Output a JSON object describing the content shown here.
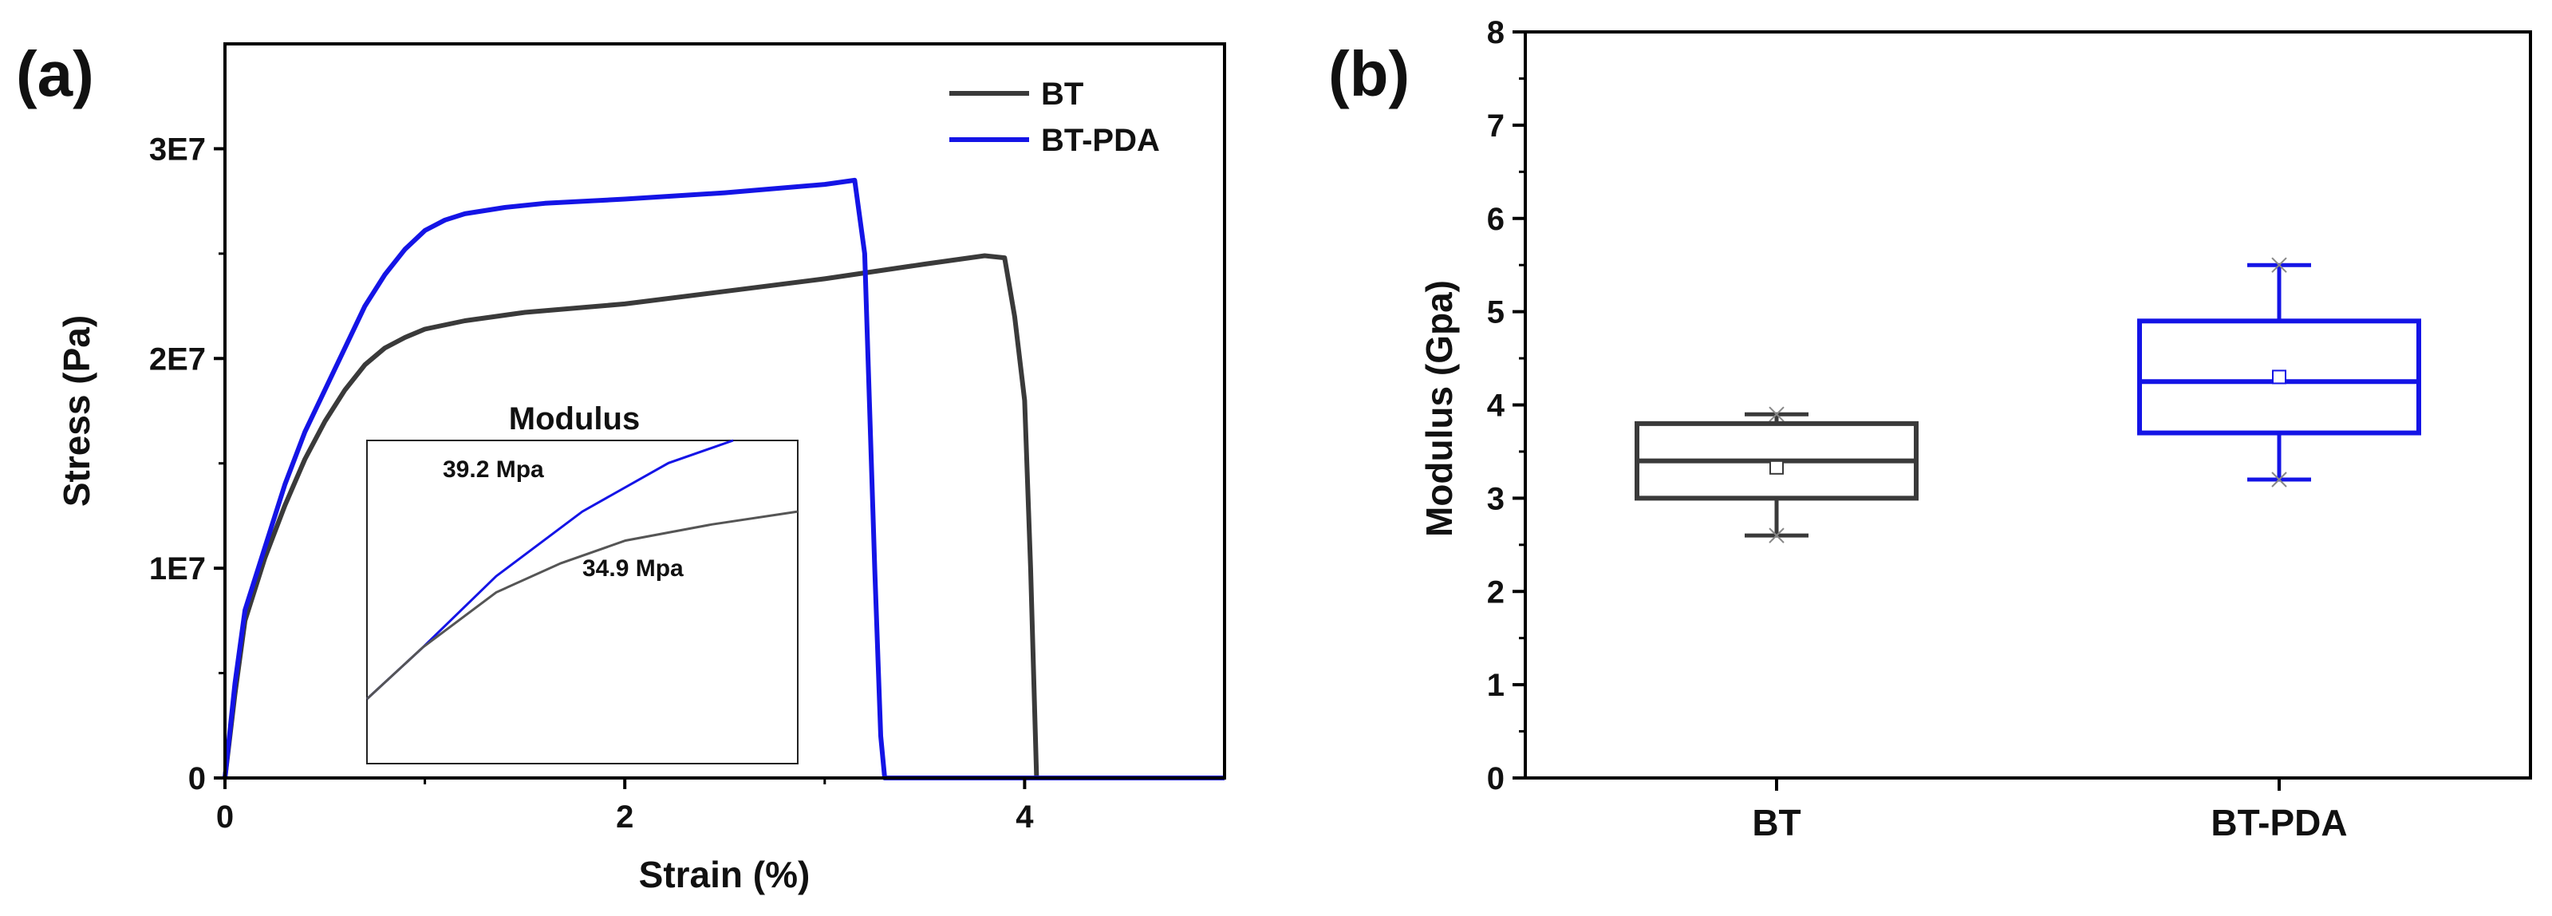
{
  "chart_data": [
    {
      "panel_label": "(a)",
      "type": "line",
      "title": "",
      "xlabel": "Strain (%)",
      "ylabel": "Stress (Pa)",
      "xlim": [
        0,
        5
      ],
      "ylim": [
        0,
        35000000
      ],
      "x_ticks": [
        0,
        2,
        4
      ],
      "x_tick_labels": [
        "0",
        "2",
        "4"
      ],
      "y_ticks": [
        0,
        10000000,
        20000000,
        30000000
      ],
      "y_tick_labels": [
        "0",
        "1E7",
        "2E7",
        "3E7"
      ],
      "legend_position": "top-right",
      "series": [
        {
          "name": "BT",
          "color": "#3a3a3a",
          "points": [
            [
              0,
              0
            ],
            [
              0.05,
              4000000
            ],
            [
              0.1,
              7500000
            ],
            [
              0.2,
              10500000
            ],
            [
              0.3,
              13000000
            ],
            [
              0.4,
              15200000
            ],
            [
              0.5,
              17000000
            ],
            [
              0.6,
              18500000
            ],
            [
              0.7,
              19700000
            ],
            [
              0.8,
              20500000
            ],
            [
              0.9,
              21000000
            ],
            [
              1.0,
              21400000
            ],
            [
              1.2,
              21800000
            ],
            [
              1.5,
              22200000
            ],
            [
              2.0,
              22600000
            ],
            [
              2.5,
              23200000
            ],
            [
              3.0,
              23800000
            ],
            [
              3.5,
              24500000
            ],
            [
              3.8,
              24900000
            ],
            [
              3.9,
              24800000
            ],
            [
              3.95,
              22000000
            ],
            [
              4.0,
              18000000
            ],
            [
              4.03,
              10000000
            ],
            [
              4.06,
              0
            ],
            [
              5.0,
              0
            ]
          ]
        },
        {
          "name": "BT-PDA",
          "color": "#1414e6",
          "points": [
            [
              0,
              0
            ],
            [
              0.05,
              4500000
            ],
            [
              0.1,
              8000000
            ],
            [
              0.2,
              11000000
            ],
            [
              0.3,
              14000000
            ],
            [
              0.4,
              16500000
            ],
            [
              0.5,
              18500000
            ],
            [
              0.6,
              20500000
            ],
            [
              0.7,
              22500000
            ],
            [
              0.8,
              24000000
            ],
            [
              0.9,
              25200000
            ],
            [
              1.0,
              26100000
            ],
            [
              1.1,
              26600000
            ],
            [
              1.2,
              26900000
            ],
            [
              1.4,
              27200000
            ],
            [
              1.6,
              27400000
            ],
            [
              2.0,
              27600000
            ],
            [
              2.5,
              27900000
            ],
            [
              3.0,
              28300000
            ],
            [
              3.15,
              28500000
            ],
            [
              3.2,
              25000000
            ],
            [
              3.25,
              10000000
            ],
            [
              3.28,
              2000000
            ],
            [
              3.3,
              0
            ],
            [
              5.0,
              0
            ]
          ]
        }
      ],
      "inset": {
        "title": "Modulus",
        "series": [
          {
            "name": "BT-PDA",
            "color": "#1414e6",
            "label": "39.2 Mpa",
            "points": [
              [
                0,
                0.2
              ],
              [
                0.13,
                0.36
              ],
              [
                0.3,
                0.58
              ],
              [
                0.5,
                0.78
              ],
              [
                0.7,
                0.93
              ],
              [
                0.85,
                1.0
              ]
            ]
          },
          {
            "name": "BT",
            "color": "#555555",
            "label": "34.9 Mpa",
            "points": [
              [
                0,
                0.2
              ],
              [
                0.13,
                0.36
              ],
              [
                0.3,
                0.53
              ],
              [
                0.45,
                0.62
              ],
              [
                0.6,
                0.69
              ],
              [
                0.8,
                0.74
              ],
              [
                1.0,
                0.78
              ]
            ]
          }
        ]
      }
    },
    {
      "panel_label": "(b)",
      "type": "box",
      "title": "",
      "xlabel": "",
      "ylabel": "Modulus (Gpa)",
      "ylim": [
        0,
        8
      ],
      "y_ticks": [
        0,
        1,
        2,
        3,
        4,
        5,
        6,
        7,
        8
      ],
      "y_tick_labels": [
        "0",
        "1",
        "2",
        "3",
        "4",
        "5",
        "6",
        "7",
        "8"
      ],
      "categories": [
        "BT",
        "BT-PDA"
      ],
      "boxes": [
        {
          "name": "BT",
          "color": "#3a3a3a",
          "whisker_low": 2.6,
          "q1": 3.0,
          "median": 3.4,
          "q3": 3.8,
          "whisker_high": 3.9,
          "mean": 3.33
        },
        {
          "name": "BT-PDA",
          "color": "#1414e6",
          "whisker_low": 3.2,
          "q1": 3.7,
          "median": 4.25,
          "q3": 4.9,
          "whisker_high": 5.5,
          "mean": 4.3
        }
      ]
    }
  ]
}
